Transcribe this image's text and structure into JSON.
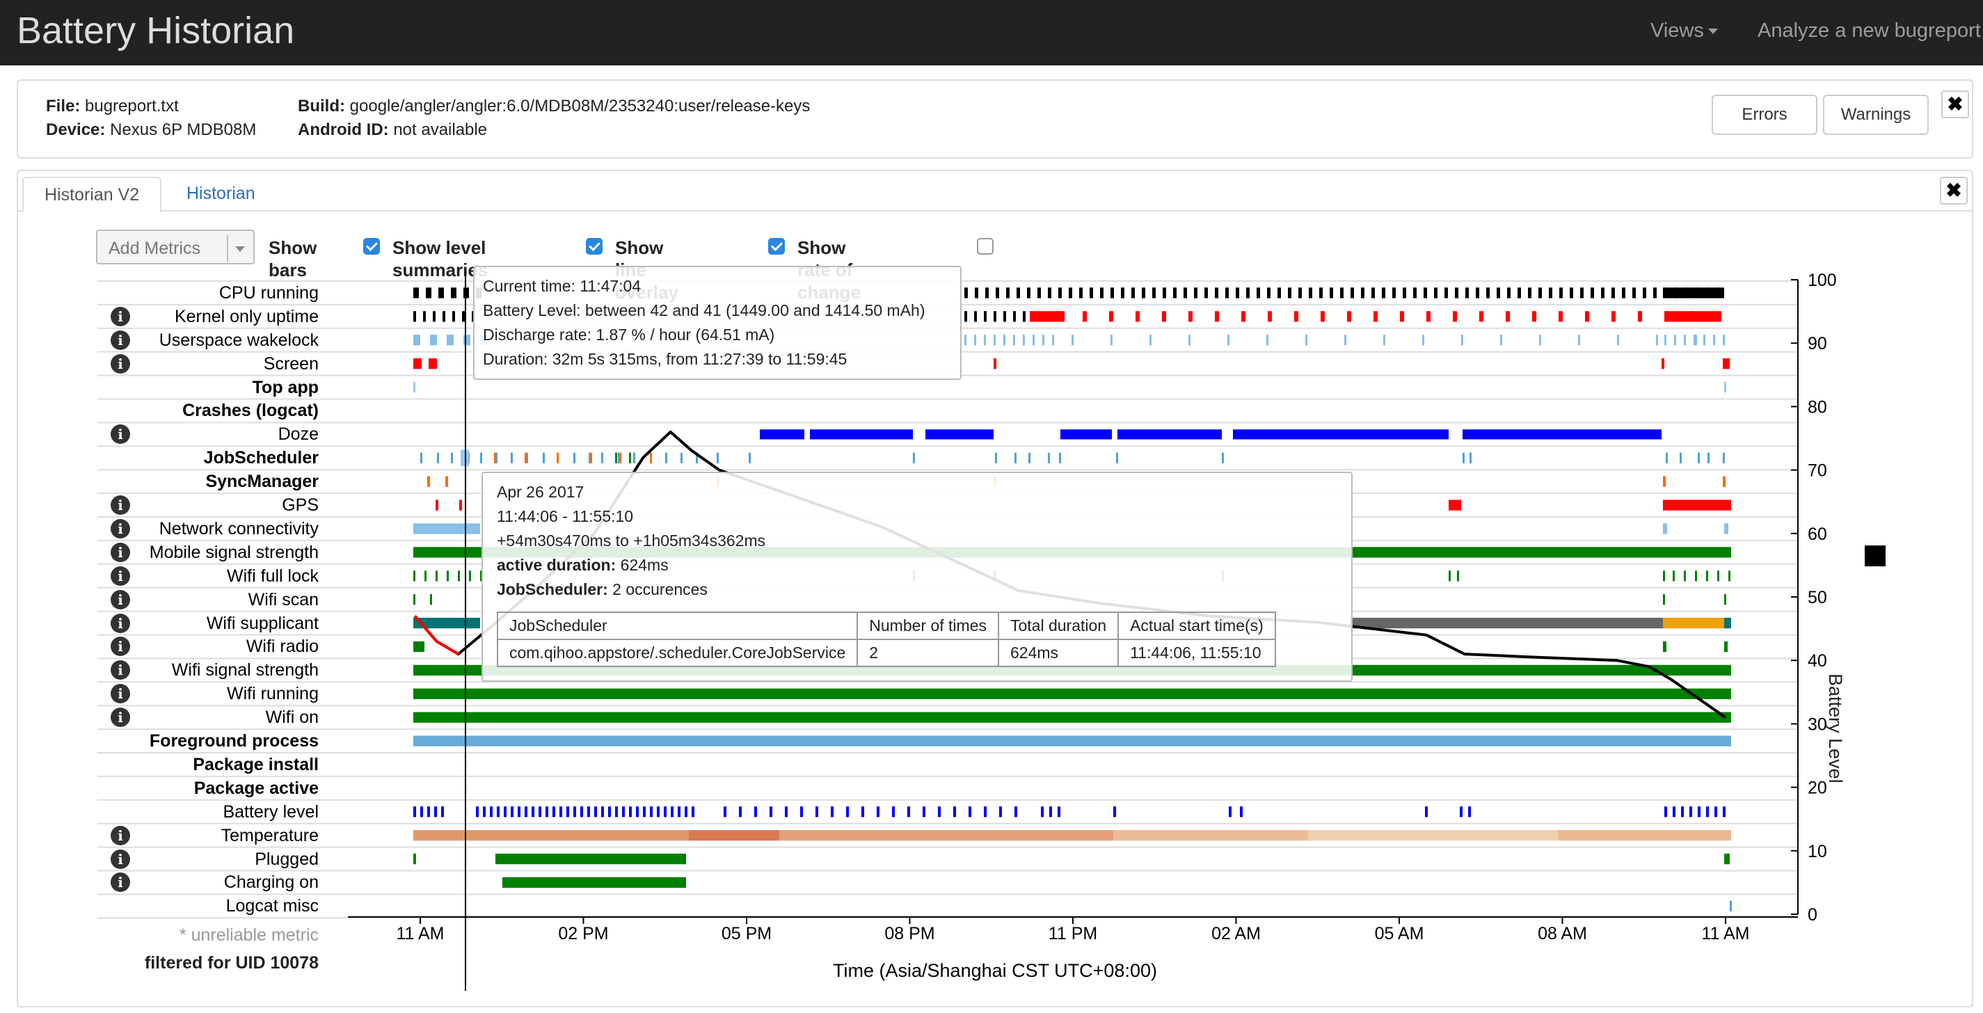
{
  "app": {
    "title": "Battery Historian"
  },
  "nav": {
    "views": "Views",
    "analyze": "Analyze a new bugreport"
  },
  "file_info": {
    "file_label": "File:",
    "file": "bugreport.txt",
    "device_label": "Device:",
    "device": "Nexus 6P MDB08M",
    "build_label": "Build:",
    "build": "google/angler/angler:6.0/MDB08M/2353240:user/release-keys",
    "android_id_label": "Android ID:",
    "android_id": "not available",
    "errors_btn": "Errors",
    "warnings_btn": "Warnings",
    "close": "✖"
  },
  "tabs": [
    {
      "label": "Historian V2",
      "active": true
    },
    {
      "label": "Historian",
      "active": false
    }
  ],
  "controls": {
    "add_metrics": "Add Metrics",
    "show_bars": "Show bars",
    "show_bars_checked": true,
    "show_level_summaries": "Show level summaries",
    "show_level_summaries_checked": true,
    "show_line_overlay": "Show line overlay",
    "show_line_overlay_checked": true,
    "show_rate_of_change": "Show rate of change",
    "show_rate_of_change_checked": false
  },
  "metrics": [
    {
      "label": "CPU running",
      "info": false,
      "bold": false
    },
    {
      "label": "Kernel only uptime",
      "info": true,
      "bold": false
    },
    {
      "label": "Userspace wakelock",
      "info": true,
      "bold": false
    },
    {
      "label": "Screen",
      "info": true,
      "bold": false
    },
    {
      "label": "Top app",
      "info": false,
      "bold": true
    },
    {
      "label": "Crashes (logcat)",
      "info": false,
      "bold": true
    },
    {
      "label": "Doze",
      "info": true,
      "bold": false
    },
    {
      "label": "JobScheduler",
      "info": false,
      "bold": true
    },
    {
      "label": "SyncManager",
      "info": false,
      "bold": true
    },
    {
      "label": "GPS",
      "info": true,
      "bold": false
    },
    {
      "label": "Network connectivity",
      "info": true,
      "bold": false
    },
    {
      "label": "Mobile signal strength",
      "info": true,
      "bold": false
    },
    {
      "label": "Wifi full lock",
      "info": true,
      "bold": false
    },
    {
      "label": "Wifi scan",
      "info": true,
      "bold": false
    },
    {
      "label": "Wifi supplicant",
      "info": true,
      "bold": false
    },
    {
      "label": "Wifi radio",
      "info": true,
      "bold": false
    },
    {
      "label": "Wifi signal strength",
      "info": true,
      "bold": false
    },
    {
      "label": "Wifi running",
      "info": true,
      "bold": false
    },
    {
      "label": "Wifi on",
      "info": true,
      "bold": false
    },
    {
      "label": "Foreground process",
      "info": false,
      "bold": true
    },
    {
      "label": "Package install",
      "info": false,
      "bold": true
    },
    {
      "label": "Package active",
      "info": false,
      "bold": true
    },
    {
      "label": "Battery level",
      "info": false,
      "bold": false
    },
    {
      "label": "Temperature",
      "info": true,
      "bold": false
    },
    {
      "label": "Plugged",
      "info": true,
      "bold": false
    },
    {
      "label": "Charging on",
      "info": true,
      "bold": false
    },
    {
      "label": "Logcat misc",
      "info": false,
      "bold": false
    }
  ],
  "footer": {
    "unreliable": "* unreliable metric",
    "filtered": "filtered for UID 10078"
  },
  "tooltip_battery": {
    "current_time": "Current time: 11:47:04",
    "battery_level": "Battery Level: between 42 and 41 (1449.00 and 1414.50 mAh)",
    "discharge": "Discharge rate: 1.87 % / hour (64.51 mA)",
    "duration": "Duration: 32m 5s 315ms, from 11:27:39 to 11:59:45"
  },
  "tooltip_job": {
    "date": "Apr 26 2017",
    "time_range": "11:44:06 - 11:55:10",
    "offset": "+54m30s470ms to +1h05m34s362ms",
    "active_label": "active duration:",
    "active_value": "624ms",
    "job_label": "JobScheduler:",
    "job_value": "2 occurences",
    "table_headers": [
      "JobScheduler",
      "Number of times",
      "Total duration",
      "Actual start time(s)"
    ],
    "table_row": [
      "com.qihoo.appstore/.scheduler.CoreJobService",
      "2",
      "624ms",
      "11:44:06, 11:55:10"
    ]
  },
  "colors": {
    "cpu": "#000000",
    "kernel_red": "#ff0000",
    "wakelock": "#87bde8",
    "screen": "#ff0000",
    "doze": "#0000ff",
    "job": "#4aa3df",
    "sync": "#ff6a00",
    "gps": "#ff0000",
    "network": "#89bfe8",
    "mobile": "#008000",
    "wifi_green": "#008000",
    "supplicant_teal": "#007373",
    "supplicant_gray": "#666666",
    "supplicant_orange": "#f0a000",
    "foreground": "#6aaad8",
    "battery_ticks": "#0000ff",
    "battery_line": "#000000"
  },
  "chart_data": {
    "type": "line",
    "xlabel": "Time (Asia/Shanghai CST UTC+08:00)",
    "ylabel": "Battery Level",
    "x_ticks": [
      "11 AM",
      "02 PM",
      "05 PM",
      "08 PM",
      "11 PM",
      "02 AM",
      "05 AM",
      "08 AM",
      "11 AM"
    ],
    "y_ticks": [
      "0",
      "10",
      "20",
      "30",
      "40",
      "50",
      "60",
      "70",
      "80",
      "90",
      "100"
    ],
    "ylim": [
      0,
      100
    ],
    "x_hours_since_first_tick": [
      -0.1,
      0.3,
      0.7,
      1.4,
      2.2,
      3.2,
      4.1,
      4.6,
      5.0,
      5.5,
      6.5,
      7.5,
      8.5,
      9.5,
      10.5,
      11.0,
      12.5,
      14.5,
      16.5,
      17.5,
      18.5,
      19.2,
      20.5,
      22.0,
      22.6,
      23.0,
      23.5,
      24.0
    ],
    "battery_series": [
      47,
      43,
      41,
      46,
      52,
      60,
      72,
      76,
      73,
      70,
      67,
      64,
      61,
      57,
      53,
      51,
      49,
      47,
      46,
      45,
      44,
      41,
      40.5,
      40,
      39,
      37,
      34,
      31
    ]
  }
}
